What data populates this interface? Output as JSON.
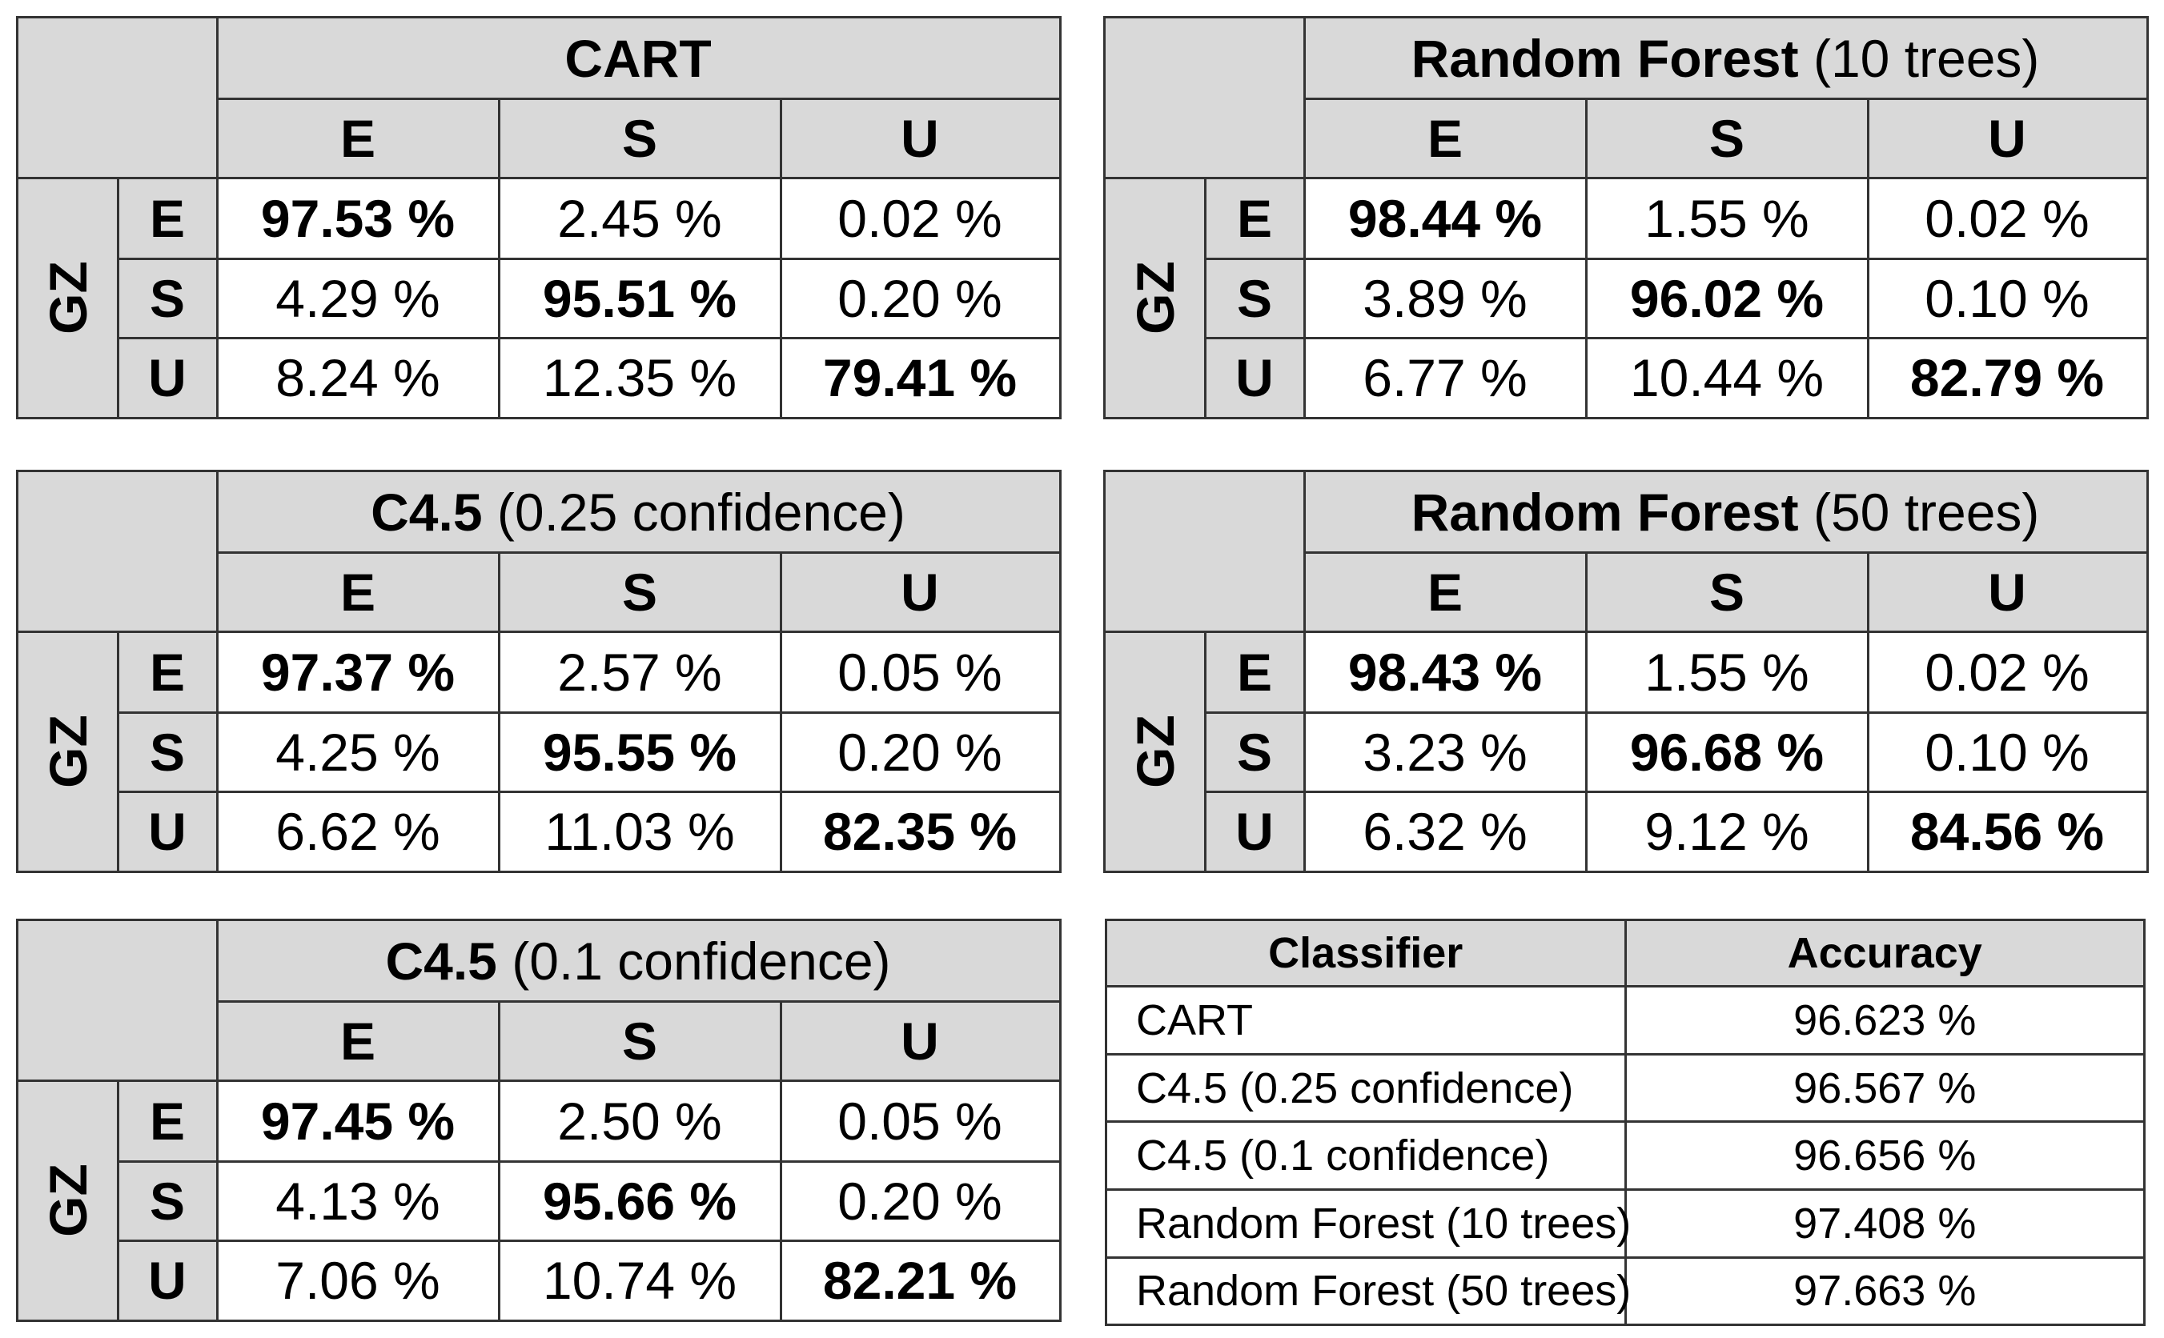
{
  "matrices": [
    {
      "title_main": "CART",
      "title_sub": "",
      "columns": [
        "E",
        "S",
        "U"
      ],
      "row_group": "GZ",
      "rows": [
        {
          "label": "E",
          "cells": [
            "97.53 %",
            "2.45 %",
            "0.02 %"
          ]
        },
        {
          "label": "S",
          "cells": [
            "4.29 %",
            "95.51 %",
            "0.20 %"
          ]
        },
        {
          "label": "U",
          "cells": [
            "8.24 %",
            "12.35 %",
            "79.41 %"
          ]
        }
      ]
    },
    {
      "title_main": "Random Forest",
      "title_sub": " (10 trees)",
      "columns": [
        "E",
        "S",
        "U"
      ],
      "row_group": "GZ",
      "rows": [
        {
          "label": "E",
          "cells": [
            "98.44 %",
            "1.55 %",
            "0.02 %"
          ]
        },
        {
          "label": "S",
          "cells": [
            "3.89 %",
            "96.02 %",
            "0.10 %"
          ]
        },
        {
          "label": "U",
          "cells": [
            "6.77 %",
            "10.44 %",
            "82.79 %"
          ]
        }
      ]
    },
    {
      "title_main": "C4.5",
      "title_sub": " (0.25 confidence)",
      "columns": [
        "E",
        "S",
        "U"
      ],
      "row_group": "GZ",
      "rows": [
        {
          "label": "E",
          "cells": [
            "97.37 %",
            "2.57 %",
            "0.05 %"
          ]
        },
        {
          "label": "S",
          "cells": [
            "4.25 %",
            "95.55 %",
            "0.20 %"
          ]
        },
        {
          "label": "U",
          "cells": [
            "6.62 %",
            "11.03 %",
            "82.35 %"
          ]
        }
      ]
    },
    {
      "title_main": "Random Forest",
      "title_sub": " (50 trees)",
      "columns": [
        "E",
        "S",
        "U"
      ],
      "row_group": "GZ",
      "rows": [
        {
          "label": "E",
          "cells": [
            "98.43 %",
            "1.55 %",
            "0.02 %"
          ]
        },
        {
          "label": "S",
          "cells": [
            "3.23 %",
            "96.68 %",
            "0.10 %"
          ]
        },
        {
          "label": "U",
          "cells": [
            "6.32 %",
            "9.12 %",
            "84.56 %"
          ]
        }
      ]
    },
    {
      "title_main": "C4.5",
      "title_sub": " (0.1 confidence)",
      "columns": [
        "E",
        "S",
        "U"
      ],
      "row_group": "GZ",
      "rows": [
        {
          "label": "E",
          "cells": [
            "97.45 %",
            "2.50 %",
            "0.05 %"
          ]
        },
        {
          "label": "S",
          "cells": [
            "4.13 %",
            "95.66 %",
            "0.20 %"
          ]
        },
        {
          "label": "U",
          "cells": [
            "7.06 %",
            "10.74 %",
            "82.21 %"
          ]
        }
      ]
    }
  ],
  "accuracy_table": {
    "headers": [
      "Classifier",
      "Accuracy"
    ],
    "rows": [
      {
        "classifier": "CART",
        "accuracy": "96.623 %"
      },
      {
        "classifier": "C4.5 (0.25 confidence)",
        "accuracy": "96.567 %"
      },
      {
        "classifier": "C4.5 (0.1 confidence)",
        "accuracy": "96.656 %"
      },
      {
        "classifier": "Random Forest (10 trees)",
        "accuracy": "97.408 %"
      },
      {
        "classifier": "Random Forest (50 trees)",
        "accuracy": "97.663 %"
      }
    ]
  },
  "colors": {
    "header_gray": "#d9d9d9",
    "border": "#333333",
    "cell": "#ffffff"
  }
}
